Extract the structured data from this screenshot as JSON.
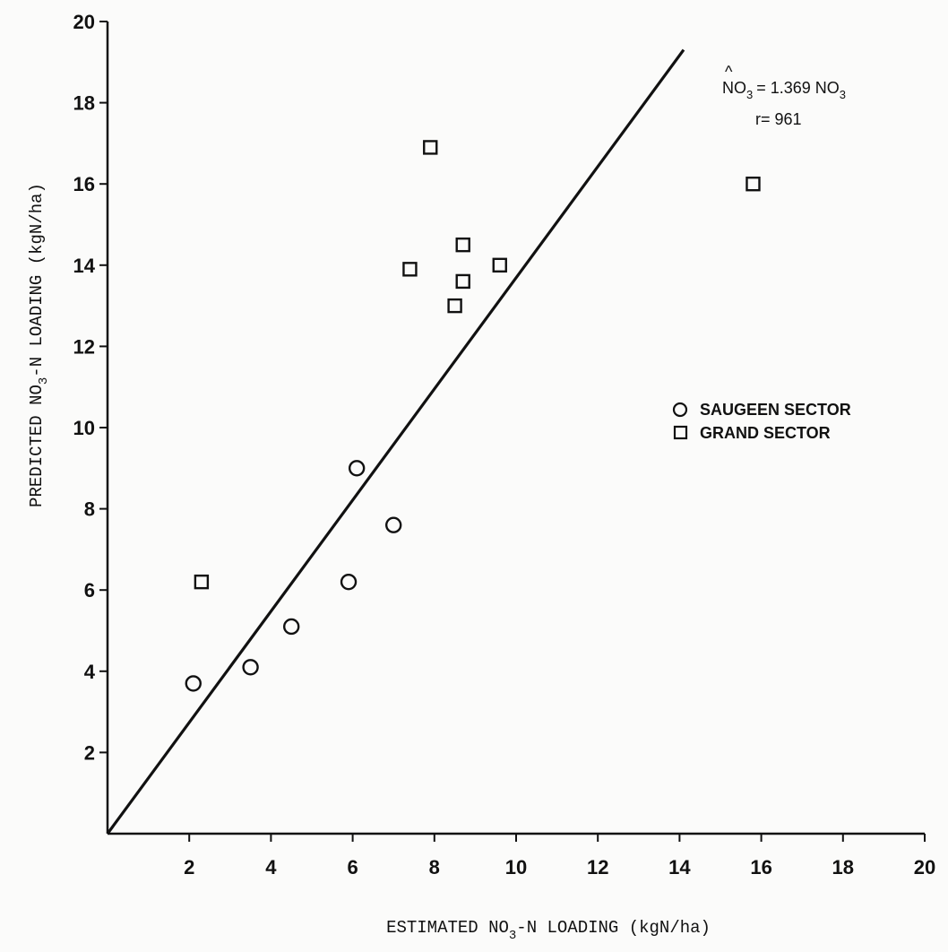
{
  "chart_data": {
    "type": "scatter",
    "xlabel": {
      "pre": "ESTIMATED NO",
      "sub": "3",
      "post": "-N LOADING (kgN/ha)"
    },
    "ylabel": {
      "pre": "PREDICTED NO",
      "sub": "3",
      "post": "-N LOADING (kgN/ha)"
    },
    "xlim": [
      0,
      20
    ],
    "ylim": [
      0,
      20
    ],
    "x_ticks": [
      2,
      4,
      6,
      8,
      10,
      12,
      14,
      16,
      18,
      20
    ],
    "y_ticks": [
      2,
      4,
      6,
      8,
      10,
      12,
      14,
      16,
      18,
      20
    ],
    "grid": false,
    "legend_position": "right",
    "series": [
      {
        "name": "SAUGEEN SECTOR",
        "marker": "circle",
        "points": [
          [
            2.1,
            3.7
          ],
          [
            3.5,
            4.1
          ],
          [
            4.5,
            5.1
          ],
          [
            5.9,
            6.2
          ],
          [
            6.1,
            9.0
          ],
          [
            7.0,
            7.6
          ]
        ]
      },
      {
        "name": "GRAND SECTOR",
        "marker": "square",
        "points": [
          [
            2.3,
            6.2
          ],
          [
            7.4,
            13.9
          ],
          [
            7.9,
            16.9
          ],
          [
            8.5,
            13.0
          ],
          [
            8.7,
            14.5
          ],
          [
            8.7,
            13.6
          ],
          [
            9.6,
            14.0
          ],
          [
            15.8,
            16.0
          ]
        ]
      }
    ],
    "regression_line": {
      "slope": 1.369,
      "intercept": 0,
      "x_range": [
        0,
        14.1
      ]
    },
    "annotation": {
      "equation": {
        "lhs": "NO",
        "lhs_sub": "3",
        "hat": "^",
        "rhs": "= 1.369 NO",
        "rhs_sub": "3"
      },
      "r": "r= 961"
    }
  }
}
